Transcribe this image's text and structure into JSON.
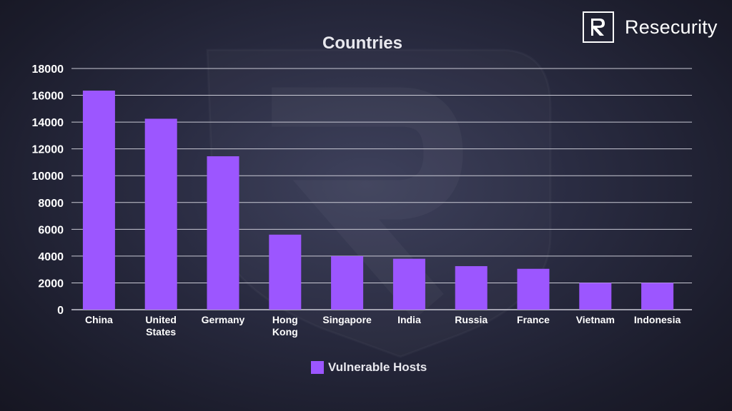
{
  "brand": {
    "name": "Resecurity"
  },
  "colors": {
    "bar": "#9c56ff",
    "grid": "#c9c9d4",
    "text": "#ffffff"
  },
  "chart_data": {
    "type": "bar",
    "title": "Countries",
    "xlabel": "",
    "ylabel": "",
    "ylim": [
      0,
      18000
    ],
    "ytick_step": 2000,
    "grid": true,
    "legend_position": "bottom",
    "categories": [
      [
        "China"
      ],
      [
        "United",
        "States"
      ],
      [
        "Germany"
      ],
      [
        "Hong",
        "Kong"
      ],
      [
        "Singapore"
      ],
      [
        "India"
      ],
      [
        "Russia"
      ],
      [
        "France"
      ],
      [
        "Vietnam"
      ],
      [
        "Indonesia"
      ]
    ],
    "series": [
      {
        "name": "Vulnerable Hosts",
        "values": [
          16350,
          14250,
          11450,
          5600,
          4000,
          3800,
          3250,
          3050,
          2000,
          2000
        ]
      }
    ]
  }
}
